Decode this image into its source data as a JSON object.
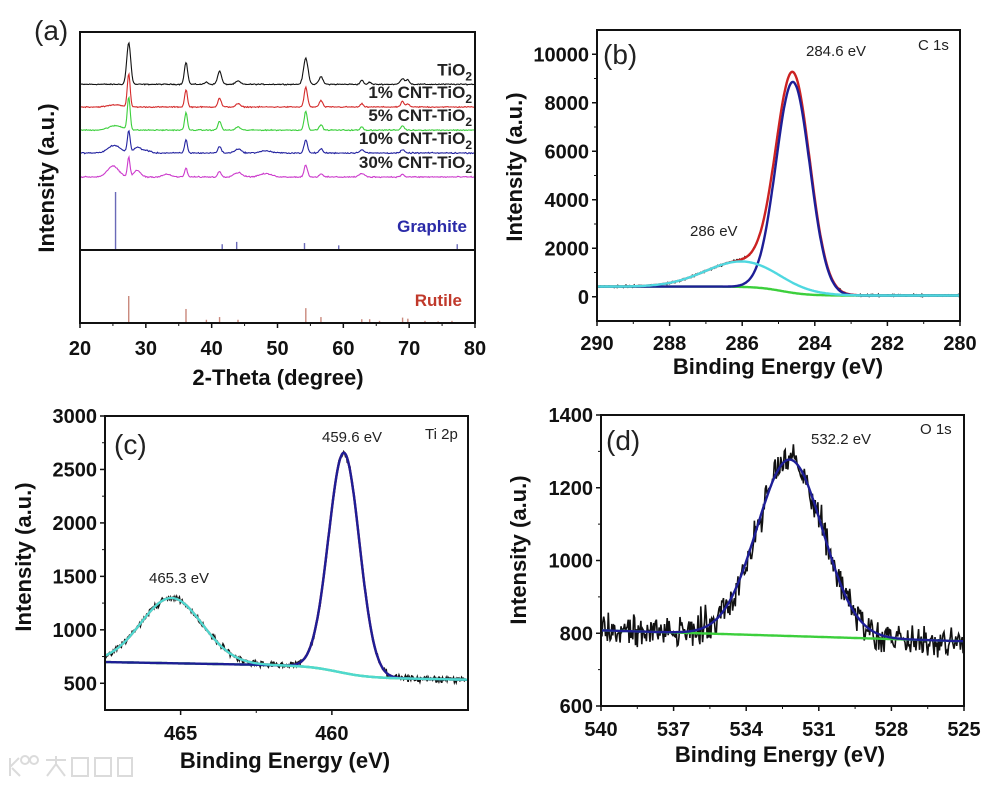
{
  "watermark": "大数跨境",
  "chart_data": [
    {
      "type": "line",
      "panel_label": "(a)",
      "xlabel": "2-Theta (degree)",
      "ylabel": "Intensity (a.u.)",
      "xlim": [
        20,
        80
      ],
      "xticks": [
        20,
        30,
        40,
        50,
        60,
        70,
        80
      ],
      "grid": false,
      "series": [
        {
          "name": "TiO2",
          "color": "#111111",
          "offset": 76,
          "noise": 0.35,
          "peaks": [
            [
              27.4,
              19,
              0.7
            ],
            [
              36.1,
              10,
              0.6
            ],
            [
              39.2,
              1,
              0.6
            ],
            [
              41.2,
              6,
              0.7
            ],
            [
              44.0,
              1.5,
              0.8
            ],
            [
              54.3,
              12,
              0.8
            ],
            [
              56.6,
              3.5,
              0.7
            ],
            [
              62.8,
              2,
              0.5
            ],
            [
              64.0,
              1,
              0.5
            ],
            [
              69.0,
              2.5,
              0.8
            ],
            [
              69.8,
              2,
              0.6
            ]
          ]
        },
        {
          "name": "1% CNT-TiO2",
          "color": "#d42a2a",
          "offset": 65.6,
          "noise": 0.35,
          "peaks": [
            [
              27.4,
              15,
              0.5
            ],
            [
              36.1,
              8,
              0.5
            ],
            [
              41.2,
              4,
              0.6
            ],
            [
              44.0,
              1.5,
              0.8
            ],
            [
              54.3,
              9,
              0.6
            ],
            [
              56.6,
              3,
              0.6
            ],
            [
              62.8,
              1.5,
              0.5
            ],
            [
              69.0,
              2.5,
              0.6
            ],
            [
              69.8,
              1.5,
              0.5
            ],
            [
              25.4,
              1,
              2.5
            ]
          ]
        },
        {
          "name": "5% CNT-TiO2",
          "color": "#3ccf3c",
          "offset": 55,
          "noise": 0.35,
          "peaks": [
            [
              27.4,
              15,
              0.5
            ],
            [
              36.1,
              8,
              0.5
            ],
            [
              41.2,
              4,
              0.6
            ],
            [
              44.0,
              1.5,
              0.8
            ],
            [
              54.3,
              8.5,
              0.6
            ],
            [
              56.6,
              2.5,
              0.6
            ],
            [
              62.8,
              1.5,
              0.5
            ],
            [
              69.0,
              2,
              0.6
            ],
            [
              25.4,
              2,
              2.5
            ]
          ]
        },
        {
          "name": "10% CNT-TiO2",
          "color": "#2323a0",
          "offset": 44.5,
          "noise": 0.4,
          "peaks": [
            [
              27.4,
              10,
              0.5
            ],
            [
              36.1,
              6,
              0.5
            ],
            [
              41.2,
              3,
              0.6
            ],
            [
              44.0,
              1.8,
              1.2
            ],
            [
              54.3,
              6,
              0.6
            ],
            [
              56.6,
              2,
              0.6
            ],
            [
              62.8,
              1.5,
              0.8
            ],
            [
              69.0,
              1.5,
              0.6
            ],
            [
              25.2,
              3.5,
              2.2
            ],
            [
              28.7,
              2.5,
              1.2
            ],
            [
              30,
              1.2,
              1.5
            ],
            [
              48.2,
              1,
              2
            ]
          ]
        },
        {
          "name": "30% CNT-TiO2",
          "color": "#cc3ccc",
          "offset": 33.5,
          "noise": 0.4,
          "peaks": [
            [
              27.4,
              9,
              0.45
            ],
            [
              36.1,
              4,
              0.5
            ],
            [
              41.2,
              2.5,
              0.6
            ],
            [
              44.0,
              2,
              1.5
            ],
            [
              54.3,
              5.5,
              0.6
            ],
            [
              56.6,
              1.5,
              0.6
            ],
            [
              62.8,
              1.5,
              1
            ],
            [
              69.0,
              1.2,
              0.6
            ],
            [
              25.0,
              5,
              2.0
            ],
            [
              28.7,
              3,
              1.2
            ],
            [
              33.2,
              1.2,
              1.5
            ],
            [
              48.2,
              1.5,
              2.2
            ]
          ]
        }
      ],
      "references": [
        {
          "name": "Graphite",
          "color": "#2a2aa8",
          "line_color": "#6a6ab8",
          "lines": [
            [
              25.4,
              100
            ],
            [
              41.6,
              10
            ],
            [
              43.8,
              14
            ],
            [
              54.1,
              12
            ],
            [
              59.3,
              8
            ],
            [
              77.3,
              10
            ]
          ]
        },
        {
          "name": "Rutile",
          "color": "#c0392b",
          "line_color": "#c9887c",
          "lines": [
            [
              27.4,
              100
            ],
            [
              36.1,
              52
            ],
            [
              39.2,
              12
            ],
            [
              41.2,
              22
            ],
            [
              44.0,
              12
            ],
            [
              54.3,
              55
            ],
            [
              56.6,
              22
            ],
            [
              62.8,
              14
            ],
            [
              64.0,
              14
            ],
            [
              65.5,
              8
            ],
            [
              69.0,
              20
            ],
            [
              69.8,
              16
            ],
            [
              72.4,
              8
            ],
            [
              74.4,
              6
            ],
            [
              76.5,
              8
            ]
          ]
        }
      ]
    },
    {
      "type": "line",
      "panel_label": "(b)",
      "title": "C 1s",
      "xlabel": "Binding Energy (eV)",
      "ylabel": "Intensity (a.u.)",
      "xlim": [
        290,
        280
      ],
      "ylim": [
        -1000,
        11000
      ],
      "xticks": [
        290,
        288,
        286,
        284,
        282,
        280
      ],
      "yticks": [
        0,
        2000,
        4000,
        6000,
        8000,
        10000
      ],
      "annotations": [
        "284.6 eV",
        "286 eV"
      ],
      "background": {
        "low": 50,
        "high": 420,
        "center": 284.9,
        "width": 0.35,
        "slope": 0,
        "color": "#3ccf3c"
      },
      "peaks": [
        {
          "center": 284.6,
          "height": 8700,
          "fwhm": 1.1,
          "color": "#1e1e96"
        },
        {
          "center": 286.0,
          "height": 1050,
          "fwhm": 2.4,
          "color": "#4fd8e0"
        }
      ],
      "envelope_color": "#cc2222",
      "raw_color": "#111111",
      "raw_noise": 60
    },
    {
      "type": "line",
      "panel_label": "(c)",
      "title": "Ti 2p",
      "xlabel": "Binding Energy (eV)",
      "ylabel": "Intensity (a.u.)",
      "xlim": [
        467.5,
        455.5
      ],
      "ylim": [
        250,
        3000
      ],
      "xticks": [
        465,
        460
      ],
      "yticks": [
        500,
        1000,
        1500,
        2000,
        2500,
        3000
      ],
      "annotations": [
        "459.6 eV",
        "465.3 eV"
      ],
      "background": {
        "low": 555,
        "high": 660,
        "center": 459.8,
        "width": 0.5,
        "slope": 5,
        "color": "#3ccf3c"
      },
      "peaks": [
        {
          "center": 459.6,
          "height": 2060,
          "fwhm": 1.2,
          "color": "#1e1e96"
        },
        {
          "center": 465.3,
          "height": 610,
          "fwhm": 2.4,
          "color": "#4fd8d0"
        }
      ],
      "envelope_color": "#cc2222",
      "raw_color": "#111111",
      "raw_noise": 45
    },
    {
      "type": "line",
      "panel_label": "(d)",
      "title": "O 1s",
      "xlabel": "Binding Energy (eV)",
      "ylabel": "Intensity (a.u.)",
      "xlim": [
        540,
        525
      ],
      "ylim": [
        600,
        1400
      ],
      "xticks": [
        540,
        537,
        534,
        531,
        528,
        525
      ],
      "yticks": [
        600,
        800,
        1000,
        1200,
        1400
      ],
      "annotations": [
        "532.2 eV"
      ],
      "background": {
        "low": 793,
        "high": 793,
        "center": 532.5,
        "width": 1,
        "slope": 2,
        "color": "#3ccf3c"
      },
      "peaks": [
        {
          "center": 532.2,
          "height": 485,
          "fwhm": 3.2,
          "color": "#1e1e96"
        }
      ],
      "envelope_color": "#1e1e96",
      "raw_color": "#111111",
      "raw_noise": 70
    }
  ]
}
